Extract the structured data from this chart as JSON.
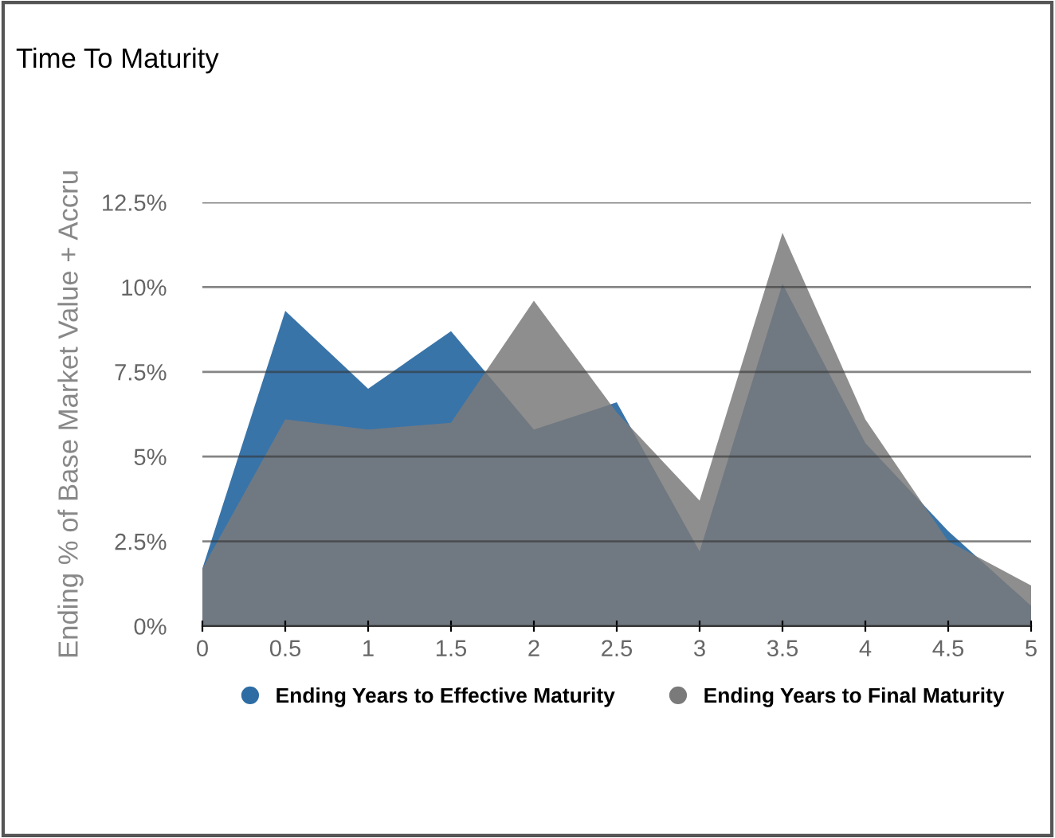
{
  "chart_data": {
    "type": "area",
    "title": "Time To Maturity",
    "ylabel": "Ending % of Base Market Value + Accru",
    "x": [
      0,
      0.5,
      1,
      1.5,
      2,
      2.5,
      3,
      3.5,
      4,
      4.5,
      5
    ],
    "series": [
      {
        "name": "Ending Years to Effective Maturity",
        "color": "#2e6da4",
        "values": [
          1.7,
          9.3,
          7.0,
          8.7,
          5.8,
          6.6,
          2.2,
          10.1,
          5.4,
          2.8,
          0.6
        ]
      },
      {
        "name": "Ending Years to Final Maturity",
        "color": "#7a7a7a",
        "values": [
          1.7,
          6.1,
          5.8,
          6.0,
          9.6,
          6.3,
          3.7,
          11.6,
          6.1,
          2.5,
          1.2
        ]
      }
    ],
    "xlim": [
      0,
      5
    ],
    "xticks": [
      0,
      0.5,
      1,
      1.5,
      2,
      2.5,
      3,
      3.5,
      4,
      4.5,
      5
    ],
    "ylim": [
      0,
      12.5
    ],
    "yticks": [
      {
        "value": 0,
        "label": "0%"
      },
      {
        "value": 2.5,
        "label": "2.5%"
      },
      {
        "value": 5,
        "label": "5%"
      },
      {
        "value": 7.5,
        "label": "7.5%"
      },
      {
        "value": 10,
        "label": "10%"
      },
      {
        "value": 12.5,
        "label": "12.5%"
      }
    ],
    "grid": "y",
    "legend": "bottom"
  }
}
